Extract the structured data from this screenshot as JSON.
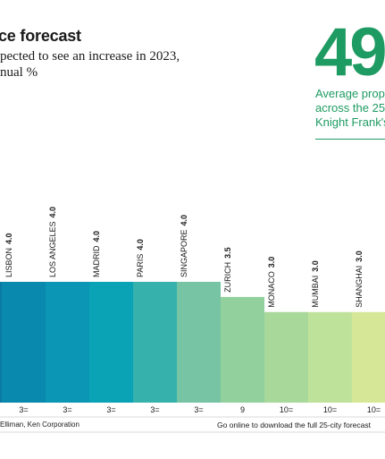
{
  "header": {
    "title": "ce forecast",
    "subtitle_lines": [
      "pected to see an increase in 2023,",
      "nual %"
    ]
  },
  "highlight": {
    "value": "49",
    "caption_lines": [
      "Average prop",
      "across the 25",
      "Knight Frank's"
    ]
  },
  "footer": {
    "source": "Elliman, Ken Corporation",
    "download": "Go online to download the full 25-city forecast"
  },
  "chart_data": {
    "type": "bar",
    "categories": [
      "LISBON",
      "LOS ANGELES",
      "MADRID",
      "PARIS",
      "SINGAPORE",
      "ZURICH",
      "MONACO",
      "MUMBAI",
      "SHANGHAI"
    ],
    "values": [
      4.0,
      4.0,
      4.0,
      4.0,
      4.0,
      3.5,
      3.0,
      3.0,
      3.0
    ],
    "value_labels": [
      "4.0",
      "4.0",
      "4.0",
      "4.0",
      "4.0",
      "3.5",
      "3.0",
      "3.0",
      "3.0"
    ],
    "ranks": [
      "3=",
      "3=",
      "3=",
      "3=",
      "3=",
      "9",
      "10=",
      "10=",
      "10="
    ],
    "colors": [
      "#0989ad",
      "#0b96b5",
      "#0aa2b5",
      "#36b1ac",
      "#76c4a4",
      "#92d09e",
      "#a8d99a",
      "#bfe29a",
      "#d6e898"
    ],
    "first_bar_color": "#0a7aa4",
    "grid_color": "#d9d9d9"
  }
}
